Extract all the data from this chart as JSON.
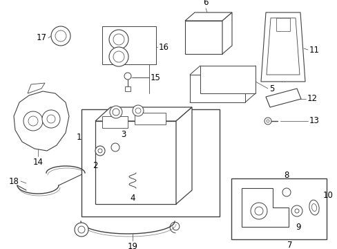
{
  "bg_color": "#ffffff",
  "line_color": "#404040",
  "figsize": [
    4.89,
    3.6
  ],
  "dpi": 100,
  "label_fontsize": 8.5,
  "label_fontsize_sm": 7.5
}
